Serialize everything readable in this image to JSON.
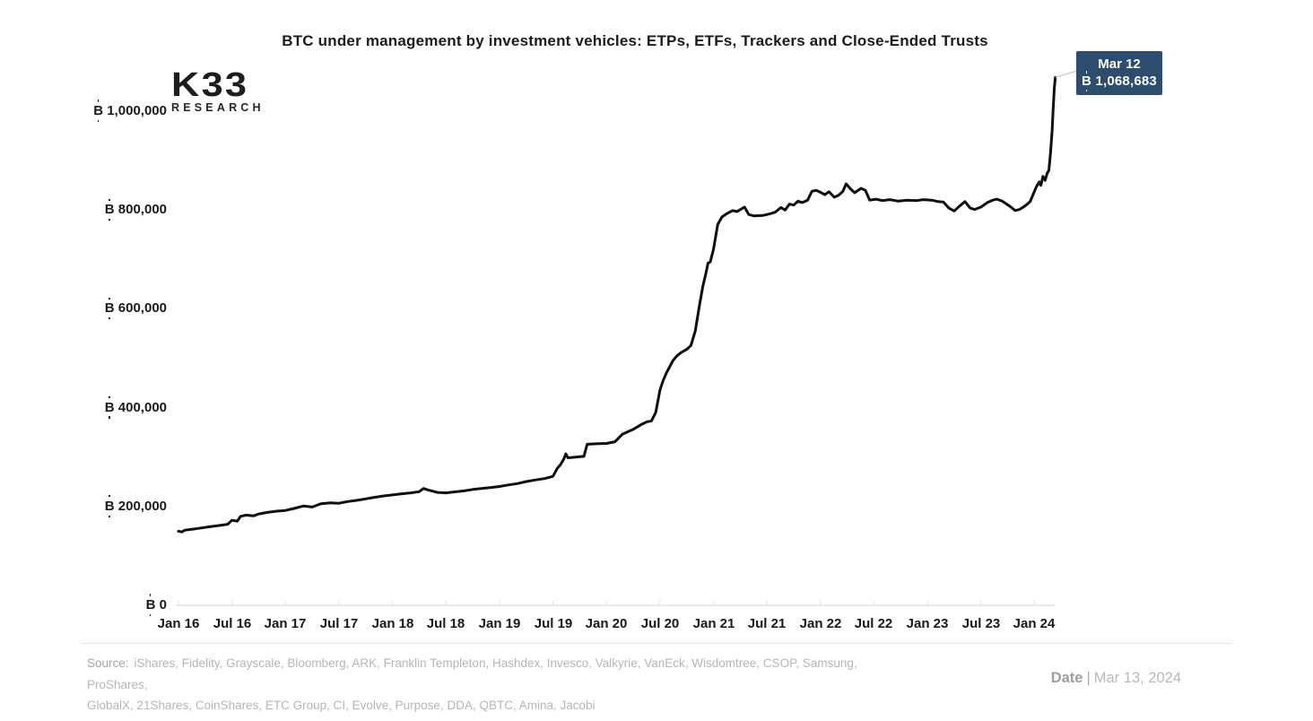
{
  "header": {
    "title": "BTC under management by investment vehicles: ETPs, ETFs, Trackers and Close-Ended Trusts",
    "logo": {
      "primary": "K33",
      "secondary": "RESEARCH"
    }
  },
  "callout": {
    "date": "Mar 12",
    "value_label": "₿ 1,068,683",
    "bg_color": "#2e4d6e",
    "text_color": "#ffffff"
  },
  "footer": {
    "source_label": "Source:",
    "source_line1": "iShares, Fidelity, Grayscale, Bloomberg, ARK, Franklin Templeton, Hashdex, Invesco, Valkyrie, VanEck, Wisdomtree, CSOP, Samsung, ProShares,",
    "source_line2": "GlobalX, 21Shares, CoinShares, ETC Group, CI, Evolve, Purpose, DDA, QBTC, Amina, Jacobi",
    "date_label": "Date",
    "date_separator": "|",
    "date_value": "Mar 13, 2024"
  },
  "chart_data": {
    "type": "line",
    "title": "BTC under management by investment vehicles: ETPs, ETFs, Trackers and Close-Ended Trusts",
    "series_name": "BTC under management (all investment vehicles)",
    "unit": "BTC",
    "currency_prefix": "₿",
    "line_color": "#0f0f0f",
    "grid": false,
    "legend": "none",
    "x_unit": "decimal_year",
    "xlim": [
      2016.0,
      2024.35
    ],
    "ylim": [
      0,
      1100000
    ],
    "x_ticks": [
      {
        "t": 2016.0,
        "label": "Jan 16"
      },
      {
        "t": 2016.5,
        "label": "Jul 16"
      },
      {
        "t": 2017.0,
        "label": "Jan 17"
      },
      {
        "t": 2017.5,
        "label": "Jul 17"
      },
      {
        "t": 2018.0,
        "label": "Jan 18"
      },
      {
        "t": 2018.5,
        "label": "Jul 18"
      },
      {
        "t": 2019.0,
        "label": "Jan 19"
      },
      {
        "t": 2019.5,
        "label": "Jul 19"
      },
      {
        "t": 2020.0,
        "label": "Jan 20"
      },
      {
        "t": 2020.5,
        "label": "Jul 20"
      },
      {
        "t": 2021.0,
        "label": "Jan 21"
      },
      {
        "t": 2021.5,
        "label": "Jul 21"
      },
      {
        "t": 2022.0,
        "label": "Jan 22"
      },
      {
        "t": 2022.5,
        "label": "Jul 22"
      },
      {
        "t": 2023.0,
        "label": "Jan 23"
      },
      {
        "t": 2023.5,
        "label": "Jul 23"
      },
      {
        "t": 2024.0,
        "label": "Jan 24"
      }
    ],
    "y_ticks": [
      {
        "v": 0,
        "label": "₿ 0"
      },
      {
        "v": 200000,
        "label": "₿ 200,000"
      },
      {
        "v": 400000,
        "label": "₿ 400,000"
      },
      {
        "v": 600000,
        "label": "₿ 600,000"
      },
      {
        "v": 800000,
        "label": "₿ 800,000"
      },
      {
        "v": 1000000,
        "label": "₿ 1,000,000"
      }
    ],
    "last_point": {
      "t": 2024.195,
      "date": "Mar 12",
      "value": 1068683
    },
    "points": [
      [
        2016.0,
        150000
      ],
      [
        2016.03,
        148500
      ],
      [
        2016.06,
        152000
      ],
      [
        2016.13,
        154000
      ],
      [
        2016.21,
        156500
      ],
      [
        2016.29,
        159000
      ],
      [
        2016.38,
        161500
      ],
      [
        2016.46,
        164000
      ],
      [
        2016.5,
        172000
      ],
      [
        2016.55,
        170500
      ],
      [
        2016.58,
        180000
      ],
      [
        2016.63,
        182500
      ],
      [
        2016.7,
        181000
      ],
      [
        2016.75,
        185000
      ],
      [
        2016.83,
        188000
      ],
      [
        2016.92,
        190500
      ],
      [
        2017.0,
        192000
      ],
      [
        2017.08,
        196000
      ],
      [
        2017.17,
        201000
      ],
      [
        2017.25,
        199000
      ],
      [
        2017.33,
        205500
      ],
      [
        2017.42,
        207500
      ],
      [
        2017.5,
        206500
      ],
      [
        2017.58,
        210000
      ],
      [
        2017.67,
        212500
      ],
      [
        2017.75,
        215500
      ],
      [
        2017.83,
        218500
      ],
      [
        2017.92,
        221500
      ],
      [
        2018.0,
        223500
      ],
      [
        2018.08,
        225500
      ],
      [
        2018.17,
        227500
      ],
      [
        2018.25,
        230000
      ],
      [
        2018.29,
        236500
      ],
      [
        2018.33,
        233500
      ],
      [
        2018.42,
        228500
      ],
      [
        2018.5,
        227500
      ],
      [
        2018.58,
        229500
      ],
      [
        2018.67,
        231500
      ],
      [
        2018.75,
        234500
      ],
      [
        2018.83,
        236500
      ],
      [
        2018.92,
        238500
      ],
      [
        2019.0,
        240500
      ],
      [
        2019.08,
        243500
      ],
      [
        2019.17,
        246500
      ],
      [
        2019.25,
        250500
      ],
      [
        2019.33,
        253500
      ],
      [
        2019.42,
        256500
      ],
      [
        2019.5,
        261000
      ],
      [
        2019.54,
        277000
      ],
      [
        2019.57,
        284500
      ],
      [
        2019.6,
        295500
      ],
      [
        2019.62,
        306500
      ],
      [
        2019.64,
        298500
      ],
      [
        2019.71,
        300000
      ],
      [
        2019.79,
        301500
      ],
      [
        2019.82,
        326000
      ],
      [
        2019.92,
        327000
      ],
      [
        2020.0,
        327500
      ],
      [
        2020.08,
        331000
      ],
      [
        2020.15,
        346500
      ],
      [
        2020.25,
        356000
      ],
      [
        2020.33,
        366500
      ],
      [
        2020.38,
        371500
      ],
      [
        2020.42,
        373000
      ],
      [
        2020.46,
        390000
      ],
      [
        2020.5,
        436000
      ],
      [
        2020.53,
        455000
      ],
      [
        2020.56,
        470000
      ],
      [
        2020.62,
        495000
      ],
      [
        2020.66,
        505000
      ],
      [
        2020.7,
        512000
      ],
      [
        2020.75,
        518000
      ],
      [
        2020.79,
        526000
      ],
      [
        2020.83,
        555000
      ],
      [
        2020.87,
        608000
      ],
      [
        2020.9,
        645000
      ],
      [
        2020.93,
        672000
      ],
      [
        2020.95,
        693000
      ],
      [
        2020.97,
        695000
      ],
      [
        2021.0,
        720000
      ],
      [
        2021.04,
        771000
      ],
      [
        2021.08,
        786000
      ],
      [
        2021.12,
        792000
      ],
      [
        2021.18,
        799000
      ],
      [
        2021.22,
        797000
      ],
      [
        2021.29,
        806000
      ],
      [
        2021.33,
        791000
      ],
      [
        2021.38,
        788000
      ],
      [
        2021.46,
        789000
      ],
      [
        2021.54,
        793000
      ],
      [
        2021.58,
        796000
      ],
      [
        2021.63,
        805000
      ],
      [
        2021.67,
        800000
      ],
      [
        2021.71,
        812000
      ],
      [
        2021.75,
        810000
      ],
      [
        2021.79,
        818000
      ],
      [
        2021.83,
        815000
      ],
      [
        2021.88,
        820000
      ],
      [
        2021.92,
        838000
      ],
      [
        2021.96,
        840000
      ],
      [
        2022.0,
        836000
      ],
      [
        2022.04,
        831000
      ],
      [
        2022.08,
        837000
      ],
      [
        2022.13,
        826000
      ],
      [
        2022.17,
        830000
      ],
      [
        2022.21,
        838000
      ],
      [
        2022.24,
        853000
      ],
      [
        2022.28,
        843000
      ],
      [
        2022.32,
        835000
      ],
      [
        2022.38,
        844000
      ],
      [
        2022.42,
        840000
      ],
      [
        2022.46,
        820000
      ],
      [
        2022.52,
        822000
      ],
      [
        2022.58,
        819000
      ],
      [
        2022.65,
        821000
      ],
      [
        2022.73,
        818000
      ],
      [
        2022.81,
        820000
      ],
      [
        2022.9,
        819000
      ],
      [
        2022.96,
        821000
      ],
      [
        2023.04,
        820000
      ],
      [
        2023.1,
        817000
      ],
      [
        2023.15,
        816000
      ],
      [
        2023.2,
        804000
      ],
      [
        2023.25,
        798000
      ],
      [
        2023.3,
        808000
      ],
      [
        2023.35,
        817000
      ],
      [
        2023.4,
        804000
      ],
      [
        2023.44,
        801000
      ],
      [
        2023.5,
        806000
      ],
      [
        2023.56,
        815000
      ],
      [
        2023.61,
        820000
      ],
      [
        2023.65,
        822000
      ],
      [
        2023.7,
        818000
      ],
      [
        2023.74,
        812000
      ],
      [
        2023.78,
        806000
      ],
      [
        2023.82,
        799000
      ],
      [
        2023.86,
        801000
      ],
      [
        2023.91,
        808000
      ],
      [
        2023.96,
        817000
      ],
      [
        2024.0,
        838000
      ],
      [
        2024.02,
        848000
      ],
      [
        2024.045,
        857000
      ],
      [
        2024.06,
        850000
      ],
      [
        2024.08,
        868000
      ],
      [
        2024.1,
        860000
      ],
      [
        2024.12,
        875000
      ],
      [
        2024.135,
        880000
      ],
      [
        2024.15,
        915000
      ],
      [
        2024.165,
        960000
      ],
      [
        2024.175,
        1005000
      ],
      [
        2024.185,
        1045000
      ],
      [
        2024.195,
        1068683
      ]
    ]
  }
}
